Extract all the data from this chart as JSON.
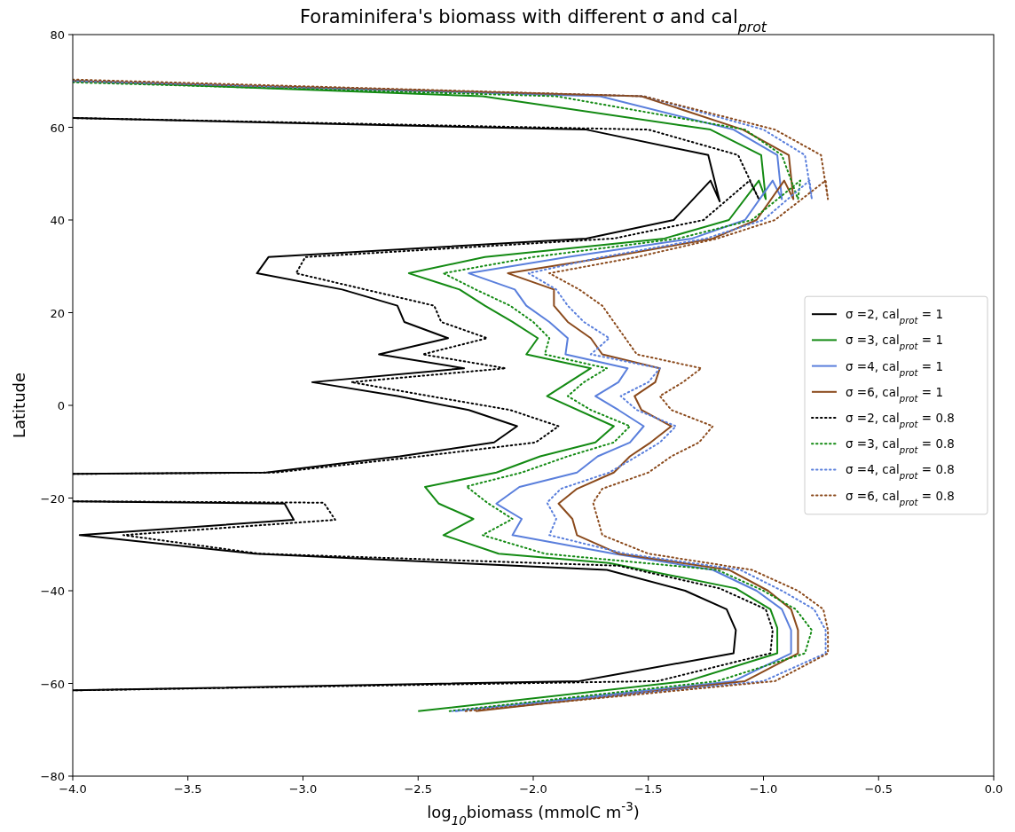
{
  "chart_data": {
    "type": "line",
    "title": "Foraminifera's biomass with different σ and cal$_{prot}$",
    "xlabel": "log$_{10}$biomass (mmolC m$^{-3}$)",
    "ylabel": "Latitude",
    "xlim": [
      -4,
      0
    ],
    "xticks": [
      {
        "value": -4,
        "label": "−4.0"
      },
      {
        "value": -3.5,
        "label": "−3.5"
      },
      {
        "value": -3,
        "label": "−3.0"
      },
      {
        "value": -2.5,
        "label": "−2.5"
      },
      {
        "value": -2,
        "label": "−2.0"
      },
      {
        "value": -1.5,
        "label": "−1.5"
      },
      {
        "value": -1,
        "label": "−1.0"
      },
      {
        "value": -0.5,
        "label": "−0.5"
      },
      {
        "value": 0,
        "label": "0.0"
      }
    ],
    "ylim": [
      -80,
      80
    ],
    "yticks": [
      {
        "value": -80,
        "label": "−80"
      },
      {
        "value": -60,
        "label": "−60"
      },
      {
        "value": -40,
        "label": "−40"
      },
      {
        "value": -20,
        "label": "−20"
      },
      0,
      20,
      40,
      60,
      80
    ],
    "grid": false,
    "legend": "right",
    "marker": "none",
    "series": [
      {
        "name": "σ =2, cal$_{prot}$ = 1",
        "color": "#000000",
        "line_style": "solid",
        "x": [
          -4,
          -1.77,
          -1.24,
          -1.19,
          -1.23,
          -1.39,
          -1.77,
          -3.15,
          -3.2,
          -2.83,
          -2.59,
          -2.56,
          -2.37,
          -2.67,
          -2.3,
          -2.96,
          -2.59,
          -2.28,
          -2.07,
          -2.17,
          -2.58,
          -3.16,
          -4,
          null,
          -4,
          -3.08,
          -3.04,
          -3.97,
          -3.21,
          -1.68,
          -1.34,
          -1.16,
          -1.12,
          -1.13,
          -1.8,
          -4
        ],
        "values": [
          62,
          59.5,
          54,
          44,
          48.5,
          40,
          36,
          32,
          28.5,
          25,
          21.5,
          18,
          14.5,
          11,
          8,
          5,
          2,
          -1,
          -4.5,
          -8,
          -11,
          -14.5,
          -14.8,
          null,
          -20.7,
          -21.2,
          -24.7,
          -28,
          -32,
          -35.5,
          -40,
          -44,
          -48.5,
          -53.5,
          -59.5,
          -61.5
        ]
      },
      {
        "name": "σ =3, cal$_{prot}$ = 1",
        "color": "#138a13",
        "line_style": "solid",
        "x": [
          -4,
          -2.22,
          -1.23,
          -1.01,
          -0.99,
          -1.02,
          -1.15,
          -1.43,
          -2.21,
          -2.54,
          -2.32,
          -2.21,
          -2.09,
          -1.98,
          -2.03,
          -1.75,
          -1.94,
          -1.65,
          -1.73,
          -1.97,
          -2.16,
          -2.47,
          -2.41,
          -2.26,
          -2.39,
          -2.15,
          -1.67,
          -1.12,
          -0.97,
          -0.94,
          -0.94,
          -1.33,
          -2.5
        ],
        "values": [
          70,
          66.7,
          59.5,
          54,
          44.5,
          48.5,
          40,
          36,
          32,
          28.5,
          25,
          21.5,
          18,
          14.5,
          11,
          8,
          2,
          -4.5,
          -8,
          -11,
          -14.5,
          -17.6,
          -21.2,
          -24.5,
          -28,
          -32,
          -34,
          -39.5,
          -44,
          -48,
          -53.5,
          -59.5,
          -66
        ]
      },
      {
        "name": "σ =4, cal$_{prot}$ = 1",
        "color": "#5a7fdc",
        "line_style": "solid",
        "x": [
          -4,
          -1.71,
          -1.13,
          -0.94,
          -0.92,
          -0.96,
          -1.08,
          -1.31,
          -1.85,
          -2.28,
          -2.08,
          -2.03,
          -1.93,
          -1.85,
          -1.86,
          -1.59,
          -1.63,
          -1.73,
          -1.63,
          -1.52,
          -1.58,
          -1.72,
          -1.81,
          -2.06,
          -2.16,
          -2.05,
          -2.09,
          -1.65,
          -1.22,
          -1.03,
          -0.92,
          -0.88,
          -0.88,
          -1.13,
          -2.34
        ],
        "values": [
          70,
          66.7,
          59.5,
          54,
          44.5,
          48.5,
          40,
          36,
          32,
          28.5,
          25,
          21.5,
          18,
          14.5,
          11,
          8,
          5,
          2,
          -1,
          -4.5,
          -8,
          -11,
          -14.5,
          -17.6,
          -21.2,
          -24.5,
          -28,
          -32,
          -35.5,
          -40,
          -44,
          -48.5,
          -53.5,
          -59.5,
          -66
        ]
      },
      {
        "name": "σ =6, cal$_{prot}$ = 1",
        "color": "#8b4a1c",
        "line_style": "solid",
        "x": [
          -4,
          -1.53,
          -1.09,
          -0.89,
          -0.87,
          -0.91,
          -1.03,
          -1.22,
          -1.67,
          -2.11,
          -1.91,
          -1.91,
          -1.85,
          -1.75,
          -1.7,
          -1.45,
          -1.47,
          -1.56,
          -1.53,
          -1.4,
          -1.49,
          -1.58,
          -1.65,
          -1.81,
          -1.89,
          -1.83,
          -1.81,
          -1.63,
          -1.15,
          -0.98,
          -0.88,
          -0.85,
          -0.85,
          -1.08,
          -2.25
        ],
        "values": [
          70,
          66.7,
          59.5,
          54,
          44.5,
          48.5,
          40,
          36,
          32,
          28.5,
          25,
          21.5,
          18,
          14.5,
          11,
          8,
          5,
          2,
          -1,
          -4.5,
          -8,
          -11,
          -14.5,
          -18,
          -21.2,
          -24.5,
          -28,
          -32,
          -35.5,
          -40,
          -44,
          -48.5,
          -53.5,
          -59.5,
          -66
        ]
      },
      {
        "name": "σ =2, cal$_{prot}$ = 0.8",
        "color": "#000000",
        "line_style": "dotted",
        "x": [
          -4,
          -1.5,
          -1.11,
          -1.02,
          -1.06,
          -1.26,
          -1.65,
          -2.99,
          -3.03,
          -2.73,
          -2.43,
          -2.4,
          -2.2,
          -2.48,
          -2.12,
          -2.79,
          -2.45,
          -2.1,
          -1.89,
          -1.99,
          -2.49,
          -3.12,
          -4,
          null,
          -4,
          -2.91,
          -2.86,
          -3.78,
          -3.19,
          -1.63,
          -1.19,
          -0.99,
          -0.96,
          -0.97,
          -1.46,
          -4
        ],
        "values": [
          62,
          59.5,
          54,
          44.5,
          48.5,
          40,
          36,
          32,
          28.5,
          25,
          21.5,
          18,
          14.5,
          11,
          8,
          5,
          2,
          -1,
          -4.5,
          -8,
          -11,
          -14.5,
          -14.8,
          null,
          -20.7,
          -21,
          -24.7,
          -28,
          -32,
          -34.6,
          -39.5,
          -44,
          -48.5,
          -53.5,
          -59.5,
          -61.5
        ]
      },
      {
        "name": "σ =3, cal$_{prot}$ = 0.8",
        "color": "#138a13",
        "line_style": "dotted",
        "x": [
          -4,
          -1.9,
          -1.08,
          -0.92,
          -0.85,
          -0.84,
          -1.05,
          -1.37,
          -2,
          -2.39,
          -2.25,
          -2.1,
          -2,
          -1.93,
          -1.95,
          -1.68,
          -1.78,
          -1.85,
          -1.75,
          -1.58,
          -1.65,
          -1.85,
          -2.05,
          -2.29,
          -2.2,
          -2.09,
          -2.22,
          -1.95,
          -1.2,
          -1,
          -0.86,
          -0.79,
          -0.82,
          -1.2,
          -2.37
        ],
        "values": [
          69.7,
          66.7,
          59.5,
          54,
          44.5,
          48.5,
          40,
          36,
          32,
          28.5,
          25,
          21.5,
          18,
          14.5,
          11,
          8,
          5,
          2,
          -1,
          -4.5,
          -8,
          -11,
          -14.5,
          -17.5,
          -21,
          -24.5,
          -28,
          -32,
          -35.5,
          -40,
          -44,
          -48.5,
          -53.5,
          -59.5,
          -66
        ]
      },
      {
        "name": "σ =4,  cal$_{prot}$ = 0.8",
        "color": "#5a7fdc",
        "line_style": "dotted",
        "x": [
          -4,
          -1.52,
          -1,
          -0.82,
          -0.79,
          -0.8,
          -1,
          -1.25,
          -1.7,
          -2.02,
          -1.9,
          -1.85,
          -1.78,
          -1.67,
          -1.75,
          -1.45,
          -1.5,
          -1.62,
          -1.55,
          -1.38,
          -1.45,
          -1.55,
          -1.67,
          -1.88,
          -1.94,
          -1.9,
          -1.93,
          -1.6,
          -1.1,
          -0.92,
          -0.78,
          -0.73,
          -0.73,
          -1,
          -2.35
        ],
        "values": [
          70,
          66.7,
          59.5,
          54,
          44.5,
          48.5,
          40,
          36,
          32,
          28.5,
          25,
          21.5,
          18,
          14.5,
          11,
          8,
          5,
          2,
          -1,
          -4.5,
          -8,
          -11,
          -14.5,
          -18,
          -21,
          -24.5,
          -28,
          -32,
          -35.5,
          -40,
          -44,
          -48.5,
          -53.5,
          -59.5,
          -66
        ]
      },
      {
        "name": "σ =6, cal$_{prot}$ = 0.8",
        "color": "#8b4a1c",
        "line_style": "dotted",
        "x": [
          -4,
          -1.52,
          -0.95,
          -0.75,
          -0.72,
          -0.73,
          -0.95,
          -1.2,
          -1.55,
          -1.93,
          -1.8,
          -1.7,
          -1.65,
          -1.6,
          -1.55,
          -1.27,
          -1.35,
          -1.45,
          -1.4,
          -1.22,
          -1.28,
          -1.4,
          -1.5,
          -1.7,
          -1.74,
          -1.72,
          -1.7,
          -1.5,
          -1.05,
          -0.85,
          -0.74,
          -0.72,
          -0.72,
          -0.95,
          -2.3
        ],
        "values": [
          70.3,
          66.7,
          59.5,
          54,
          44.5,
          48.5,
          40,
          36,
          32,
          28.5,
          25,
          21.5,
          18,
          14.5,
          11,
          8,
          5,
          2,
          -1,
          -4.5,
          -8,
          -11,
          -14.5,
          -18,
          -21,
          -24.5,
          -28,
          -32,
          -35.5,
          -40,
          -44,
          -48.5,
          -53.5,
          -59.5,
          -66
        ]
      }
    ]
  }
}
